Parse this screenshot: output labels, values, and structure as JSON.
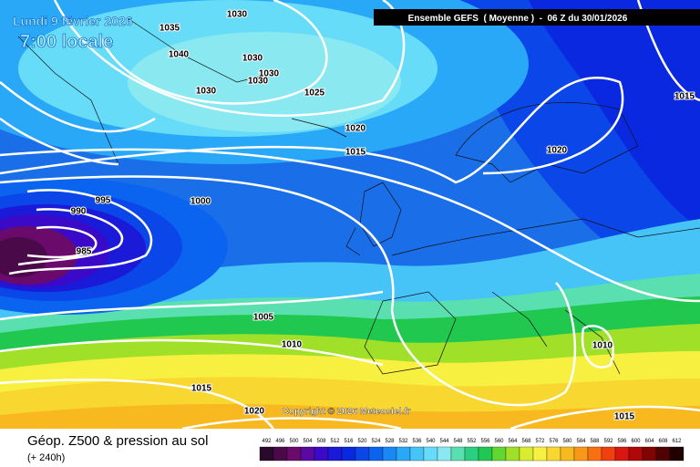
{
  "header": {
    "date": "Lundi 9 février 2026",
    "time": "7:00 locale",
    "run": "Ensemble GEFS  ( Moyenne )  -  06 Z du 30/01/2026"
  },
  "isobar_labels": [
    1030,
    1035,
    1040,
    1030,
    1030,
    1030,
    1030,
    1025,
    1020,
    1015,
    1020,
    1015,
    995,
    990,
    985,
    1000,
    1005,
    1010,
    1010,
    1015,
    1020,
    1015
  ],
  "copyright": "Copyright © 2026 Meteociel.fr",
  "footer": {
    "title": "Géop. Z500 & pression au sol",
    "lead": "(+ 240h)"
  },
  "scale": {
    "values": [
      492,
      496,
      500,
      504,
      508,
      512,
      516,
      520,
      524,
      528,
      532,
      536,
      540,
      544,
      548,
      552,
      556,
      560,
      564,
      568,
      572,
      576,
      580,
      584,
      588,
      592,
      596,
      600,
      604,
      608,
      612
    ],
    "colors": [
      "#2a0a2a",
      "#4a0a4a",
      "#6a0a6a",
      "#5a0aa0",
      "#3a0ac8",
      "#1a1ad8",
      "#0a28e0",
      "#0a46e8",
      "#0a64f0",
      "#1a88f4",
      "#2aa8f8",
      "#46c4f8",
      "#66dcf8",
      "#8ae8f0",
      "#5ae0b0",
      "#2ad080",
      "#20c850",
      "#60d830",
      "#a0e028",
      "#d8ec30",
      "#f8f040",
      "#f8d830",
      "#f8b820",
      "#f89818",
      "#f87010",
      "#f04010",
      "#d81810",
      "#b00808",
      "#800404",
      "#500202",
      "#200000"
    ]
  }
}
